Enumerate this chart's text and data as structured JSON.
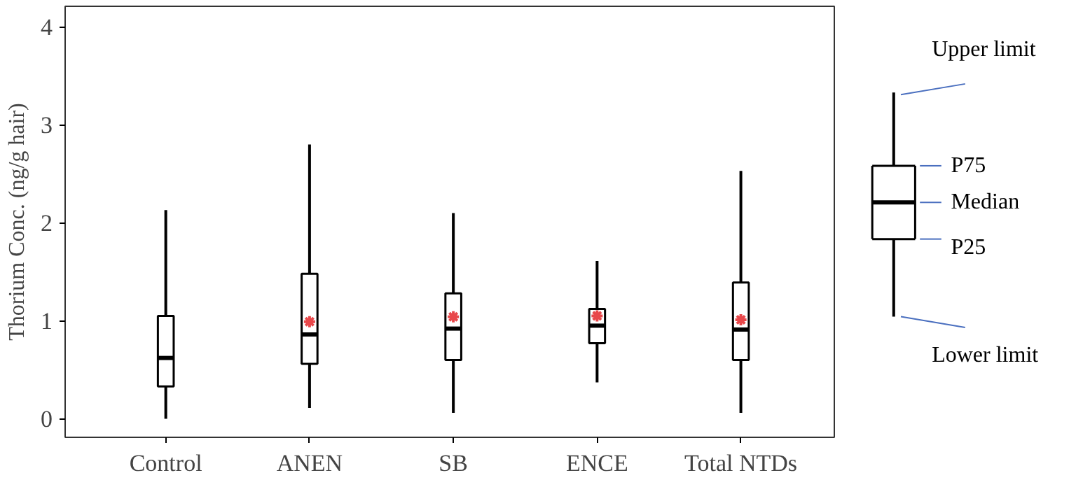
{
  "chart_data": {
    "type": "box",
    "ylabel": "Thorium Conc. (ng/g hair)",
    "categories": [
      "Control",
      "ANEN",
      "SB",
      "ENCE",
      "Total NTDs"
    ],
    "boxes": [
      {
        "low": 0.0,
        "q1": 0.33,
        "median": 0.62,
        "q3": 1.05,
        "high": 2.13
      },
      {
        "low": 0.11,
        "q1": 0.56,
        "median": 0.86,
        "q3": 1.48,
        "high": 2.8,
        "mean": 0.99
      },
      {
        "low": 0.06,
        "q1": 0.6,
        "median": 0.92,
        "q3": 1.28,
        "high": 2.1,
        "mean": 1.04
      },
      {
        "low": 0.37,
        "q1": 0.77,
        "median": 0.95,
        "q3": 1.12,
        "high": 1.61,
        "mean": 1.05
      },
      {
        "low": 0.06,
        "q1": 0.6,
        "median": 0.91,
        "q3": 1.39,
        "high": 2.53,
        "mean": 1.01
      }
    ],
    "ylim": [
      -0.19,
      4.21
    ],
    "yticks": [
      0,
      1,
      2,
      3,
      4
    ],
    "grid": false,
    "marker": "star",
    "annotations": [
      "Upper limit",
      "P75",
      "Median",
      "P25",
      "Lower limit"
    ]
  }
}
